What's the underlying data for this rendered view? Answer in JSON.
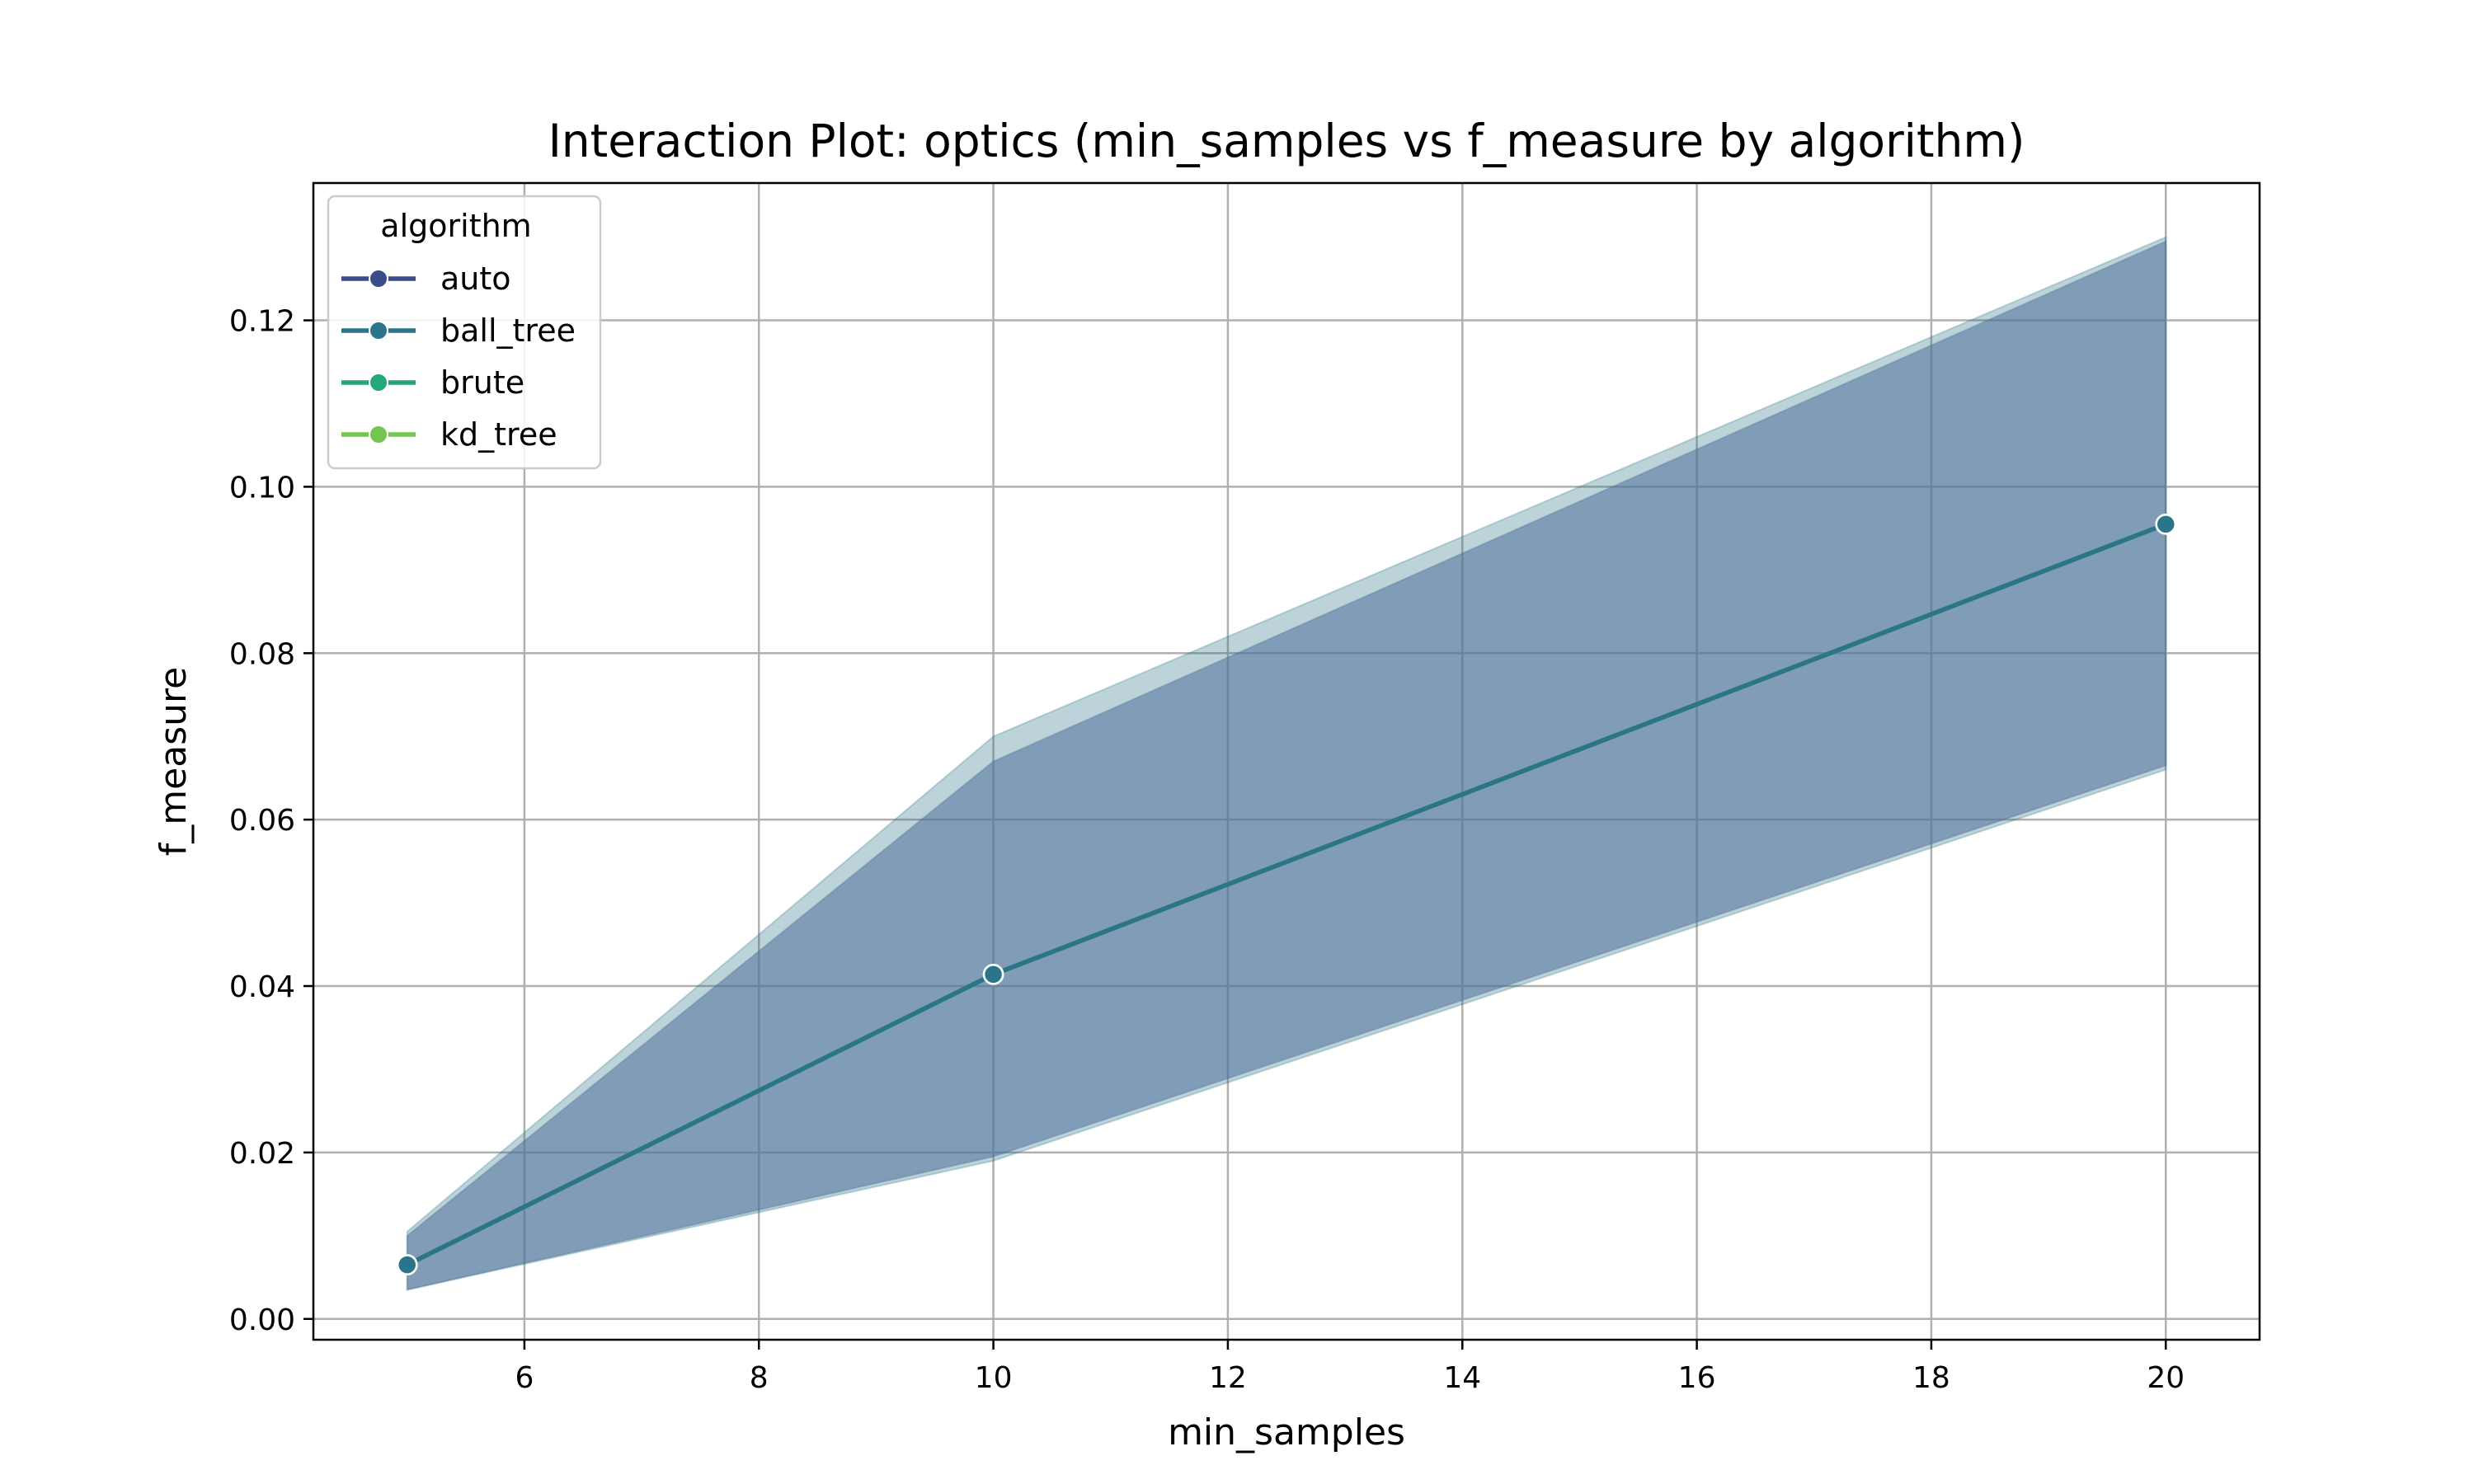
{
  "chart_data": {
    "type": "line",
    "title": "Interaction Plot: optics (min_samples vs f_measure by algorithm)",
    "xlabel": "min_samples",
    "ylabel": "f_measure",
    "x": [
      5,
      10,
      20
    ],
    "xlim": [
      4.2,
      20.8
    ],
    "ylim": [
      -0.0025,
      0.1365
    ],
    "xticks": [
      6,
      8,
      10,
      12,
      14,
      16,
      18,
      20
    ],
    "yticks": [
      0.0,
      0.02,
      0.04,
      0.06,
      0.08,
      0.1,
      0.12
    ],
    "ytick_labels": [
      "0.00",
      "0.02",
      "0.04",
      "0.06",
      "0.08",
      "0.10",
      "0.12"
    ],
    "grid": true,
    "legend": {
      "title": "algorithm",
      "placement": "top-left"
    },
    "series": [
      {
        "name": "auto",
        "color": "#3b4c8a",
        "values": [
          0.0065,
          0.0414,
          0.0955
        ],
        "ci_low": [
          0.0035,
          0.0195,
          0.0665
        ],
        "ci_high": [
          0.01,
          0.067,
          0.1295
        ],
        "band_opacity": 0.22
      },
      {
        "name": "ball_tree",
        "color": "#2a7589",
        "values": [
          0.0065,
          0.0414,
          0.0955
        ],
        "ci_low": [
          0.0035,
          0.019,
          0.066
        ],
        "ci_high": [
          0.0105,
          0.07,
          0.13
        ],
        "band_opacity": 0.2
      },
      {
        "name": "brute",
        "color": "#26a67f",
        "values": [
          0.0065,
          0.0414,
          0.0955
        ],
        "ci_low": [
          0.0035,
          0.019,
          0.066
        ],
        "ci_high": [
          0.01,
          0.067,
          0.1295
        ],
        "band_opacity": 0.0
      },
      {
        "name": "kd_tree",
        "color": "#74c54e",
        "values": [
          0.0065,
          0.0414,
          0.0955
        ],
        "ci_low": [
          0.0035,
          0.019,
          0.066
        ],
        "ci_high": [
          0.01,
          0.067,
          0.1295
        ],
        "band_opacity": 0.0
      }
    ],
    "band_fill_color": "#6c86a8",
    "visible_line_color": "#2a7589"
  }
}
